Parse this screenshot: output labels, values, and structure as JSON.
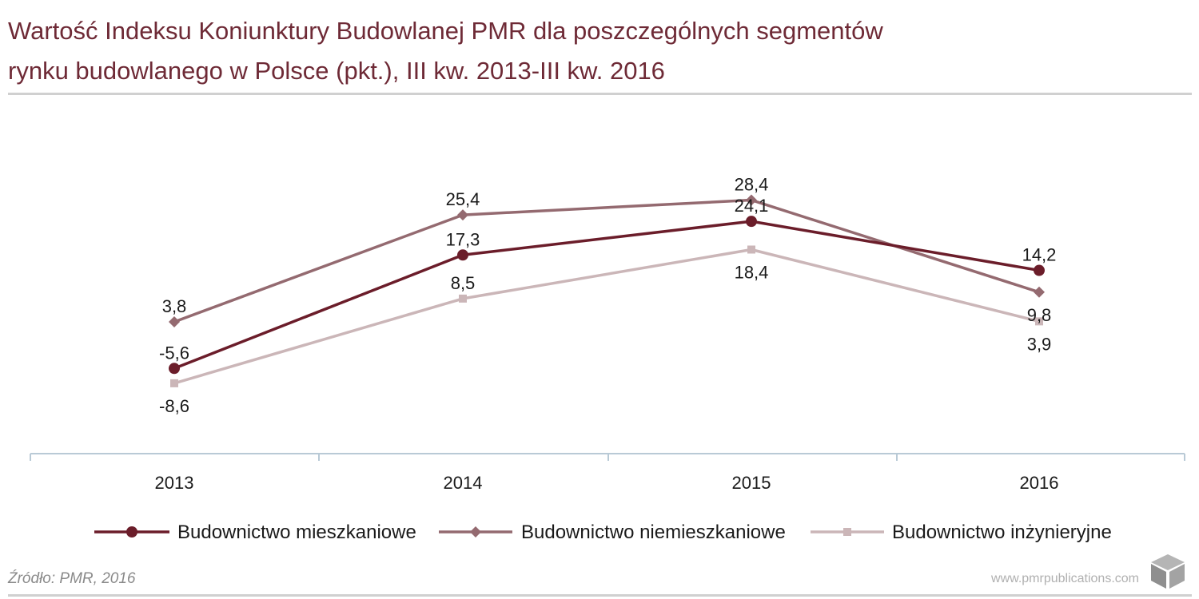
{
  "title_line1": "Wartość Indeksu Koniunktury Budowlanej PMR dla poszczególnych segmentów",
  "title_line2": "rynku budowlanego w Polsce (pkt.), III kw. 2013-III kw. 2016",
  "source": "Źródło: PMR, 2016",
  "website": "www.pmrpublications.com",
  "colors": {
    "title": "#6e2a36",
    "axis": "#b9cad6",
    "series_residential": "#6b1d2a",
    "series_nonresidential": "#946a70",
    "series_engineering": "#cbb6b8"
  },
  "chart_data": {
    "type": "line",
    "x": [
      "2013",
      "2014",
      "2015",
      "2016"
    ],
    "series": [
      {
        "name": "Budownictwo mieszkaniowe",
        "values": [
          -5.6,
          17.3,
          24.1,
          14.2
        ],
        "labels": [
          "-5,6",
          "17,3",
          "24,1",
          "14,2"
        ],
        "color": "#6b1d2a",
        "marker": "circle",
        "label_pos": [
          "above",
          "above",
          "above",
          "above"
        ]
      },
      {
        "name": "Budownictwo niemieszkaniowe",
        "values": [
          3.8,
          25.4,
          28.4,
          9.8
        ],
        "labels": [
          "3,8",
          "25,4",
          "28,4",
          "9,8"
        ],
        "color": "#946a70",
        "marker": "diamond",
        "label_pos": [
          "above",
          "above",
          "above",
          "below"
        ]
      },
      {
        "name": "Budownictwo inżynieryjne",
        "values": [
          -8.6,
          8.5,
          18.4,
          3.9
        ],
        "labels": [
          "-8,6",
          "8,5",
          "18,4",
          "3,9"
        ],
        "color": "#cbb6b8",
        "marker": "square",
        "label_pos": [
          "below",
          "above",
          "below",
          "below"
        ]
      }
    ],
    "legend_position": "bottom",
    "grid": false
  }
}
